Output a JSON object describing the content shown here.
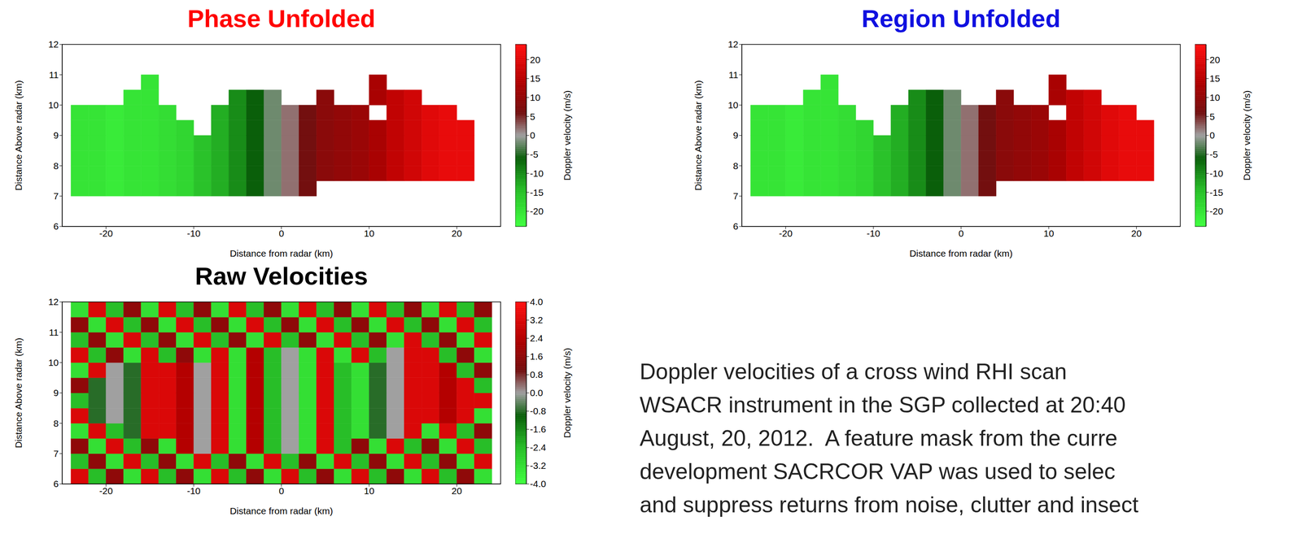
{
  "chart_data": [
    {
      "type": "heatmap",
      "title": "Phase Unfolded",
      "x_label": "Distance from radar (km)",
      "y_label": "Distance Above radar (km)",
      "xlim": [
        -25,
        25
      ],
      "ylim": [
        6,
        12
      ],
      "xticks": [
        -20,
        -10,
        0,
        10,
        20
      ],
      "yticks": [
        6,
        7,
        8,
        9,
        10,
        11,
        12
      ],
      "x_edges": [
        -24,
        -22,
        -20,
        -18,
        -16,
        -14,
        -12,
        -10,
        -8,
        -6,
        -4,
        -2,
        0,
        2,
        4,
        6,
        8,
        10,
        12,
        14,
        16,
        18,
        20,
        22
      ],
      "y_edges": [
        7,
        7.5,
        8,
        8.5,
        9,
        9.5,
        10,
        10.5,
        11
      ],
      "cells": [
        [
          -20,
          -20,
          -21,
          -20,
          -20,
          -19,
          -18,
          -15,
          -13,
          -10,
          -6,
          -2,
          2,
          6,
          null,
          null,
          null,
          null,
          null,
          null,
          null,
          null,
          null
        ],
        [
          -20,
          -20,
          -21,
          -20,
          -20,
          -19,
          -18,
          -15,
          -13,
          -10,
          -6,
          -2,
          2,
          6,
          9,
          10,
          11,
          13,
          16,
          18,
          20,
          21,
          21
        ],
        [
          -20,
          -20,
          -21,
          -20,
          -20,
          -19,
          -18,
          -15,
          -13,
          -10,
          -6,
          -2,
          2,
          6,
          9,
          10,
          11,
          13,
          16,
          18,
          20,
          21,
          21
        ],
        [
          -20,
          -20,
          -21,
          -20,
          -20,
          -19,
          -18,
          -15,
          -13,
          -10,
          -6,
          -2,
          2,
          6,
          9,
          10,
          11,
          13,
          16,
          18,
          20,
          21,
          21
        ],
        [
          -20,
          -20,
          -21,
          -20,
          -20,
          -19,
          -18,
          null,
          -13,
          -10,
          -6,
          -2,
          2,
          6,
          9,
          10,
          11,
          13,
          16,
          18,
          20,
          21,
          21
        ],
        [
          -20,
          -20,
          -21,
          -20,
          -20,
          -19,
          null,
          null,
          -13,
          -10,
          -6,
          -2,
          2,
          6,
          9,
          10,
          11,
          null,
          16,
          18,
          20,
          21,
          null
        ],
        [
          null,
          null,
          null,
          -20,
          -20,
          null,
          null,
          null,
          null,
          -10,
          -6,
          -2,
          null,
          null,
          9,
          null,
          null,
          13,
          16,
          18,
          null,
          null,
          null
        ],
        [
          null,
          null,
          null,
          null,
          -20,
          null,
          null,
          null,
          null,
          null,
          null,
          null,
          null,
          null,
          null,
          null,
          null,
          13,
          null,
          null,
          null,
          null,
          null
        ]
      ],
      "colorbar": {
        "label": "Doppler velocity (m/s)",
        "range": [
          -24,
          24
        ],
        "ticks": [
          -20,
          -15,
          -10,
          -5,
          0,
          5,
          10,
          15,
          20
        ]
      }
    },
    {
      "type": "heatmap",
      "title": "Region Unfolded",
      "x_label": "Distance from radar (km)",
      "y_label": "Distance Above radar (km)",
      "xlim": [
        -25,
        25
      ],
      "ylim": [
        6,
        12
      ],
      "xticks": [
        -20,
        -10,
        0,
        10,
        20
      ],
      "yticks": [
        6,
        7,
        8,
        9,
        10,
        11,
        12
      ],
      "x_edges": [
        -24,
        -22,
        -20,
        -18,
        -16,
        -14,
        -12,
        -10,
        -8,
        -6,
        -4,
        -2,
        0,
        2,
        4,
        6,
        8,
        10,
        12,
        14,
        16,
        18,
        20,
        22
      ],
      "y_edges": [
        7,
        7.5,
        8,
        8.5,
        9,
        9.5,
        10,
        10.5,
        11
      ],
      "cells": [
        [
          -20,
          -20,
          -21,
          -20,
          -20,
          -19,
          -18,
          -15,
          -13,
          -10,
          -6,
          -2,
          2,
          6,
          null,
          null,
          null,
          null,
          null,
          null,
          null,
          null,
          null
        ],
        [
          -20,
          -20,
          -21,
          -20,
          -20,
          -19,
          -18,
          -15,
          -13,
          -10,
          -6,
          -2,
          2,
          6,
          9,
          10,
          11,
          13,
          16,
          18,
          20,
          21,
          21
        ],
        [
          -20,
          -20,
          -21,
          -20,
          -20,
          -19,
          -18,
          -15,
          -13,
          -10,
          -6,
          -2,
          2,
          6,
          9,
          10,
          11,
          13,
          16,
          18,
          20,
          21,
          21
        ],
        [
          -20,
          -20,
          -21,
          -20,
          -20,
          -19,
          -18,
          -15,
          -13,
          -10,
          -6,
          -2,
          2,
          6,
          9,
          10,
          11,
          13,
          16,
          18,
          20,
          21,
          21
        ],
        [
          -20,
          -20,
          -21,
          -20,
          -20,
          -19,
          -18,
          null,
          -13,
          -10,
          -6,
          -2,
          2,
          6,
          9,
          10,
          11,
          13,
          16,
          18,
          20,
          21,
          21
        ],
        [
          -20,
          -20,
          -21,
          -20,
          -20,
          -19,
          null,
          null,
          -13,
          -10,
          -6,
          -2,
          2,
          6,
          9,
          10,
          11,
          null,
          16,
          18,
          20,
          21,
          null
        ],
        [
          null,
          null,
          null,
          -20,
          -20,
          null,
          null,
          null,
          null,
          -10,
          -6,
          -2,
          null,
          null,
          9,
          null,
          null,
          13,
          16,
          18,
          null,
          null,
          null
        ],
        [
          null,
          null,
          null,
          null,
          -20,
          null,
          null,
          null,
          null,
          null,
          null,
          null,
          null,
          null,
          null,
          null,
          null,
          13,
          null,
          null,
          null,
          null,
          null
        ]
      ],
      "colorbar": {
        "label": "Doppler velocity (m/s)",
        "range": [
          -24,
          24
        ],
        "ticks": [
          -20,
          -15,
          -10,
          -5,
          0,
          5,
          10,
          15,
          20
        ]
      }
    },
    {
      "type": "heatmap",
      "title": "Raw Velocities",
      "x_label": "Distance from radar (km)",
      "y_label": "Distance Above radar (km)",
      "xlim": [
        -25,
        25
      ],
      "ylim": [
        6,
        12
      ],
      "xticks": [
        -20,
        -10,
        0,
        10,
        20
      ],
      "yticks": [
        6,
        7,
        8,
        9,
        10,
        11,
        12
      ],
      "x_edges": [
        -24,
        -22,
        -20,
        -18,
        -16,
        -14,
        -12,
        -10,
        -8,
        -6,
        -4,
        -2,
        0,
        2,
        4,
        6,
        8,
        10,
        12,
        14,
        16,
        18,
        20,
        22,
        24
      ],
      "y_edges": [
        6,
        6.5,
        7,
        7.5,
        8,
        8.5,
        9,
        9.5,
        10,
        10.5,
        11,
        11.5,
        12
      ],
      "cells": [
        [
          3.2,
          -2.4,
          1.6,
          -3.2,
          3.2,
          -2.4,
          1.6,
          -3.2,
          3.2,
          -2.4,
          1.6,
          -3.2,
          3.2,
          -2.4,
          1.6,
          -3.2,
          3.2,
          -2.4,
          1.6,
          -3.2,
          3.2,
          -2.4,
          1.6,
          -3.2
        ],
        [
          -2.4,
          1.6,
          -3.2,
          3.2,
          -2.4,
          1.6,
          -3.2,
          3.2,
          -2.4,
          1.6,
          -3.2,
          3.2,
          -2.4,
          1.6,
          -3.2,
          3.2,
          -2.4,
          1.6,
          -3.2,
          3.2,
          -2.4,
          1.6,
          -3.2,
          3.2
        ],
        [
          1.6,
          -3.2,
          3.2,
          -2.4,
          1.6,
          -3.2,
          2.4,
          0,
          3.2,
          -3.2,
          2.4,
          -2.4,
          0,
          -3.2,
          3.2,
          -2.4,
          1.6,
          -3.2,
          3.2,
          -2.4,
          1.6,
          -3.2,
          3.2,
          -2.4
        ],
        [
          -3.2,
          3.2,
          -2.4,
          -0.8,
          3.2,
          3.2,
          2.4,
          0,
          3.2,
          -3.2,
          2.4,
          -2.4,
          0,
          -3.2,
          3.2,
          -2.4,
          -3.2,
          -0.8,
          0,
          3.2,
          -3.2,
          3.2,
          -2.4,
          1.6
        ],
        [
          3.2,
          -0.8,
          0,
          -0.8,
          3.2,
          3.2,
          2.4,
          0,
          3.2,
          -3.2,
          2.4,
          -2.4,
          0,
          -3.2,
          3.2,
          -2.4,
          -3.2,
          -0.8,
          0,
          3.2,
          3.2,
          2.4,
          3.2,
          -3.2
        ],
        [
          -2.4,
          -0.8,
          0,
          -0.8,
          3.2,
          3.2,
          2.4,
          0,
          3.2,
          -3.2,
          2.4,
          -2.4,
          0,
          -3.2,
          3.2,
          -2.4,
          -3.2,
          -0.8,
          0,
          3.2,
          3.2,
          2.4,
          3.2,
          3.2
        ],
        [
          1.6,
          -0.8,
          0,
          -0.8,
          3.2,
          3.2,
          2.4,
          0,
          3.2,
          -3.2,
          2.4,
          -2.4,
          0,
          -3.2,
          3.2,
          -2.4,
          -3.2,
          -0.8,
          0,
          3.2,
          3.2,
          2.4,
          3.2,
          -2.4
        ],
        [
          -3.2,
          3.2,
          0,
          -0.8,
          3.2,
          3.2,
          2.4,
          0,
          3.2,
          -3.2,
          2.4,
          -2.4,
          0,
          -3.2,
          3.2,
          -2.4,
          -3.2,
          -0.8,
          0,
          3.2,
          3.2,
          2.4,
          -2.4,
          1.6
        ],
        [
          3.2,
          -2.4,
          1.6,
          -3.2,
          3.2,
          -2.4,
          1.6,
          -3.2,
          3.2,
          -3.2,
          2.4,
          -2.4,
          0,
          -3.2,
          3.2,
          -3.2,
          3.2,
          -2.4,
          0,
          3.2,
          3.2,
          -2.4,
          1.6,
          -3.2
        ],
        [
          -2.4,
          1.6,
          -3.2,
          3.2,
          -2.4,
          1.6,
          -3.2,
          3.2,
          -2.4,
          1.6,
          -3.2,
          3.2,
          -2.4,
          1.6,
          -3.2,
          3.2,
          -2.4,
          1.6,
          -3.2,
          3.2,
          -2.4,
          1.6,
          -3.2,
          3.2
        ],
        [
          1.6,
          -3.2,
          3.2,
          -2.4,
          1.6,
          -3.2,
          3.2,
          -2.4,
          1.6,
          -3.2,
          3.2,
          -2.4,
          1.6,
          -3.2,
          3.2,
          -2.4,
          1.6,
          -3.2,
          3.2,
          -2.4,
          1.6,
          -3.2,
          3.2,
          -2.4
        ],
        [
          -3.2,
          3.2,
          -2.4,
          1.6,
          -3.2,
          3.2,
          -2.4,
          1.6,
          -3.2,
          3.2,
          -2.4,
          1.6,
          -3.2,
          3.2,
          -2.4,
          1.6,
          -3.2,
          3.2,
          -2.4,
          1.6,
          -3.2,
          3.2,
          -2.4,
          1.6
        ]
      ],
      "colorbar": {
        "label": "Doppler velocity (m/s)",
        "range": [
          -4,
          4
        ],
        "ticks": [
          {
            "value": -4,
            "label": "-4.0"
          },
          -3.2,
          -2.4,
          -1.6,
          -0.8,
          {
            "value": 0,
            "label": "0.0"
          },
          0.8,
          1.6,
          2.4,
          3.2,
          {
            "value": 4,
            "label": "4.0"
          }
        ]
      }
    }
  ],
  "text": {
    "lines": [
      "Doppler velocities of a cross wind RHI scan",
      "WSACR instrument in the SGP collected at 20:40",
      "August, 20, 2012.  A feature mask from the curre",
      "development SACRCOR VAP was used to selec",
      "and suppress returns from noise, clutter and insect"
    ]
  }
}
